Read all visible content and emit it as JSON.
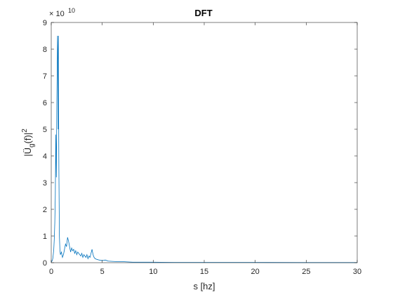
{
  "chart_data": {
    "type": "line",
    "title": "DFT",
    "xlabel": "s [hz]",
    "ylabel_base": "|Ü",
    "ylabel_sub": "g",
    "ylabel_mid": "(f)|",
    "ylabel_sup": "2",
    "y_exponent_base": "× 10",
    "y_exponent_power": "10",
    "xlim": [
      0,
      30
    ],
    "ylim": [
      0,
      9
    ],
    "y_scale": 10000000000.0,
    "xticks": [
      0,
      5,
      10,
      15,
      20,
      25,
      30
    ],
    "xtick_labels": [
      "0",
      "5",
      "10",
      "15",
      "20",
      "25",
      "30"
    ],
    "yticks": [
      0,
      1,
      2,
      3,
      4,
      5,
      6,
      7,
      8,
      9
    ],
    "ytick_labels": [
      "0",
      "1",
      "2",
      "3",
      "4",
      "5",
      "6",
      "7",
      "8",
      "9"
    ],
    "grid": false,
    "line_color": "#0072BD",
    "series": [
      {
        "x": [
          0,
          0.05,
          0.1,
          0.15,
          0.2,
          0.25,
          0.3,
          0.35,
          0.4,
          0.45,
          0.5,
          0.55,
          0.6,
          0.62,
          0.65,
          0.68,
          0.7,
          0.72,
          0.75,
          0.78,
          0.8,
          0.85,
          0.9,
          1.0,
          1.1,
          1.2,
          1.3,
          1.4,
          1.5,
          1.6,
          1.7,
          1.8,
          1.9,
          2.0,
          2.1,
          2.2,
          2.3,
          2.4,
          2.5,
          2.6,
          2.7,
          2.8,
          2.9,
          3.0,
          3.1,
          3.2,
          3.3,
          3.4,
          3.5,
          3.6,
          3.7,
          3.8,
          3.9,
          4.0,
          4.1,
          4.2,
          4.3,
          4.5,
          4.7,
          5.0,
          5.3,
          5.6,
          6.0,
          6.5,
          7.0,
          7.5,
          8.0,
          9.0,
          10.0,
          12.0,
          15.0,
          20.0,
          25.0,
          30.0
        ],
        "y": [
          0.02,
          0.05,
          0.08,
          0.15,
          0.3,
          0.5,
          0.9,
          1.5,
          2.5,
          4.8,
          3.2,
          6.0,
          7.8,
          8.5,
          7.8,
          5.0,
          8.5,
          6.2,
          3.5,
          2.0,
          1.0,
          0.5,
          0.3,
          0.4,
          0.2,
          0.3,
          0.5,
          0.7,
          0.6,
          0.95,
          0.8,
          0.6,
          0.4,
          0.55,
          0.45,
          0.5,
          0.35,
          0.45,
          0.3,
          0.4,
          0.35,
          0.3,
          0.25,
          0.35,
          0.2,
          0.3,
          0.25,
          0.2,
          0.3,
          0.15,
          0.25,
          0.2,
          0.35,
          0.5,
          0.3,
          0.2,
          0.15,
          0.12,
          0.1,
          0.08,
          0.1,
          0.06,
          0.05,
          0.04,
          0.04,
          0.03,
          0.02,
          0.02,
          0.02,
          0.01,
          0.01,
          0.01,
          0.005,
          0.005
        ]
      }
    ]
  }
}
